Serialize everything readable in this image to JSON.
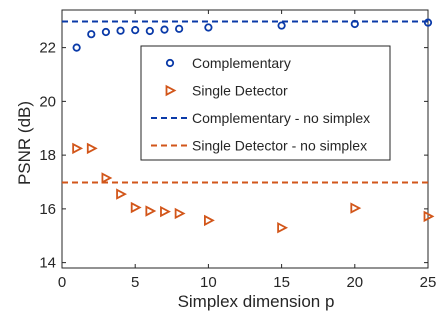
{
  "chart_data": {
    "type": "scatter",
    "xlabel": "Simplex dimension p",
    "ylabel": "PSNR (dB)",
    "xlim": [
      0,
      25
    ],
    "ylim": [
      13.8,
      23.4
    ],
    "xticks": [
      0,
      5,
      10,
      15,
      20,
      25
    ],
    "yticks": [
      14,
      16,
      18,
      20,
      22
    ],
    "grid": false,
    "legend_placement": "center-right",
    "series": [
      {
        "name": "Complementary",
        "kind": "markers",
        "marker": "circle",
        "color": "#0a3aa8",
        "x": [
          1,
          2,
          3,
          4,
          5,
          6,
          7,
          8,
          10,
          15,
          20,
          25
        ],
        "y": [
          22.0,
          22.5,
          22.58,
          22.63,
          22.65,
          22.62,
          22.67,
          22.7,
          22.75,
          22.82,
          22.88,
          22.93
        ]
      },
      {
        "name": "Single Detector",
        "kind": "markers",
        "marker": "triangle-right",
        "color": "#d2561a",
        "x": [
          1,
          2,
          3,
          4,
          5,
          6,
          7,
          8,
          10,
          15,
          20,
          25
        ],
        "y": [
          18.25,
          18.25,
          17.15,
          16.55,
          16.05,
          15.92,
          15.9,
          15.83,
          15.57,
          15.3,
          16.03,
          15.72
        ]
      },
      {
        "name": "Complementary - no simplex",
        "kind": "hline",
        "color": "#0a3aa8",
        "value": 22.97
      },
      {
        "name": "Single Detector - no simplex",
        "kind": "hline",
        "color": "#d2561a",
        "value": 16.98
      }
    ]
  }
}
